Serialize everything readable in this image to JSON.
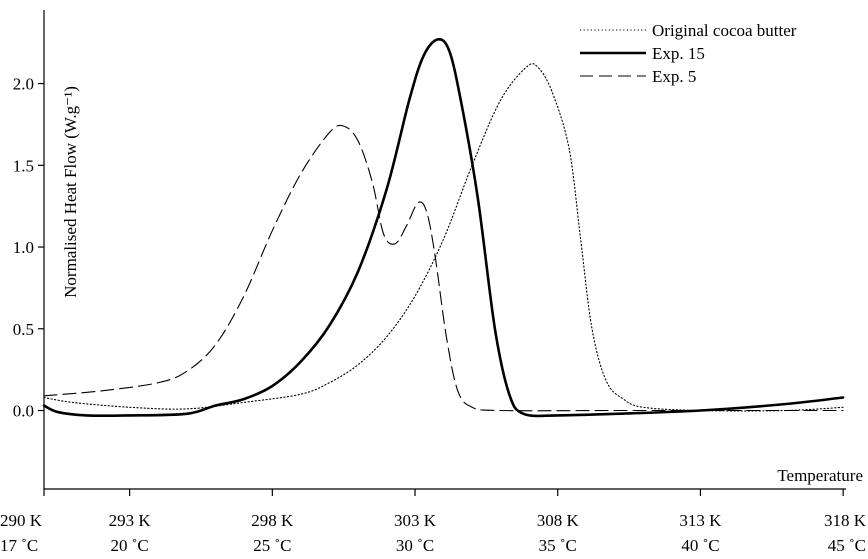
{
  "chart_data": {
    "type": "line",
    "xlabel": "Temperature",
    "ylabel": "Normalised Heat Flow (W.g⁻¹)",
    "xlim": [
      290,
      318.1
    ],
    "ylim": [
      -0.48,
      2.45
    ],
    "x_ticks": [
      {
        "value": 290,
        "kelvin": "290 K",
        "celsius": "17 ˚C"
      },
      {
        "value": 293,
        "kelvin": "293 K",
        "celsius": "20 ˚C"
      },
      {
        "value": 298,
        "kelvin": "298 K",
        "celsius": "25 ˚C"
      },
      {
        "value": 303,
        "kelvin": "303 K",
        "celsius": "30 ˚C"
      },
      {
        "value": 308,
        "kelvin": "308 K",
        "celsius": "35 ˚C"
      },
      {
        "value": 313,
        "kelvin": "313 K",
        "celsius": "40 ˚C"
      },
      {
        "value": 318,
        "kelvin": "318 K",
        "celsius": "45 ˚C"
      }
    ],
    "y_ticks": [
      {
        "value": 0.0,
        "label": "0.0"
      },
      {
        "value": 0.5,
        "label": "0.5"
      },
      {
        "value": 1.0,
        "label": "1.0"
      },
      {
        "value": 1.5,
        "label": "1.5"
      },
      {
        "value": 2.0,
        "label": "2.0"
      }
    ],
    "legend_position": "top-right",
    "series": [
      {
        "name": "Original cocoa butter",
        "style": "dotted",
        "points": [
          [
            290,
            0.08
          ],
          [
            291,
            0.05
          ],
          [
            293,
            0.02
          ],
          [
            295,
            0.01
          ],
          [
            297,
            0.05
          ],
          [
            299,
            0.1
          ],
          [
            300,
            0.17
          ],
          [
            301,
            0.28
          ],
          [
            302,
            0.45
          ],
          [
            303,
            0.7
          ],
          [
            304,
            1.05
          ],
          [
            305,
            1.5
          ],
          [
            306,
            1.9
          ],
          [
            306.9,
            2.1
          ],
          [
            307.3,
            2.1
          ],
          [
            307.8,
            1.95
          ],
          [
            308.4,
            1.6
          ],
          [
            308.8,
            1.05
          ],
          [
            309.2,
            0.5
          ],
          [
            309.7,
            0.18
          ],
          [
            310.3,
            0.07
          ],
          [
            311,
            0.02
          ],
          [
            313,
            0.0
          ],
          [
            316,
            0.0
          ],
          [
            318,
            0.02
          ]
        ]
      },
      {
        "name": "Exp. 15",
        "style": "solid",
        "points": [
          [
            290,
            0.03
          ],
          [
            290.5,
            -0.01
          ],
          [
            291.5,
            -0.03
          ],
          [
            293,
            -0.03
          ],
          [
            295,
            -0.02
          ],
          [
            296,
            0.03
          ],
          [
            297,
            0.07
          ],
          [
            298,
            0.15
          ],
          [
            299,
            0.3
          ],
          [
            300,
            0.52
          ],
          [
            301,
            0.85
          ],
          [
            302,
            1.35
          ],
          [
            302.8,
            1.9
          ],
          [
            303.3,
            2.17
          ],
          [
            303.8,
            2.27
          ],
          [
            304.2,
            2.2
          ],
          [
            304.6,
            1.9
          ],
          [
            305.2,
            1.3
          ],
          [
            305.8,
            0.5
          ],
          [
            306.3,
            0.1
          ],
          [
            306.8,
            -0.02
          ],
          [
            308,
            -0.03
          ],
          [
            310,
            -0.02
          ],
          [
            313,
            0.0
          ],
          [
            316,
            0.04
          ],
          [
            318,
            0.08
          ]
        ]
      },
      {
        "name": "Exp. 5",
        "style": "dashed",
        "points": [
          [
            290,
            0.09
          ],
          [
            292,
            0.12
          ],
          [
            294,
            0.17
          ],
          [
            295,
            0.24
          ],
          [
            296,
            0.4
          ],
          [
            297,
            0.7
          ],
          [
            298,
            1.1
          ],
          [
            299,
            1.45
          ],
          [
            300,
            1.7
          ],
          [
            300.5,
            1.74
          ],
          [
            301,
            1.65
          ],
          [
            301.5,
            1.4
          ],
          [
            301.9,
            1.08
          ],
          [
            302.3,
            1.02
          ],
          [
            302.7,
            1.13
          ],
          [
            303.1,
            1.27
          ],
          [
            303.4,
            1.22
          ],
          [
            303.7,
            0.95
          ],
          [
            304.1,
            0.45
          ],
          [
            304.5,
            0.12
          ],
          [
            305,
            0.02
          ],
          [
            306,
            0.0
          ],
          [
            310,
            0.0
          ],
          [
            314,
            0.0
          ],
          [
            318,
            0.0
          ]
        ]
      }
    ]
  }
}
